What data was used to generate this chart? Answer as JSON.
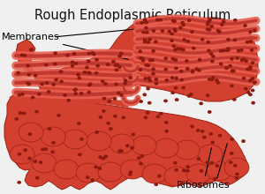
{
  "title": "Rough Endoplasmic Reticulum",
  "title_fontsize": 10.5,
  "title_color": "#111111",
  "bg_color": "#e8e8e8",
  "label_membranes": "Membranes",
  "label_ribosomes": "Ribosomes",
  "label_fontsize": 8,
  "er_main": "#d44030",
  "er_mid": "#c03520",
  "er_dark": "#9a2010",
  "er_light": "#e86050",
  "er_pale": "#e87060",
  "lumen_color": "#c03830",
  "ribosome_color": "#8b1a10",
  "line_color": "#e07060",
  "bg_white": "#f0f0f0"
}
